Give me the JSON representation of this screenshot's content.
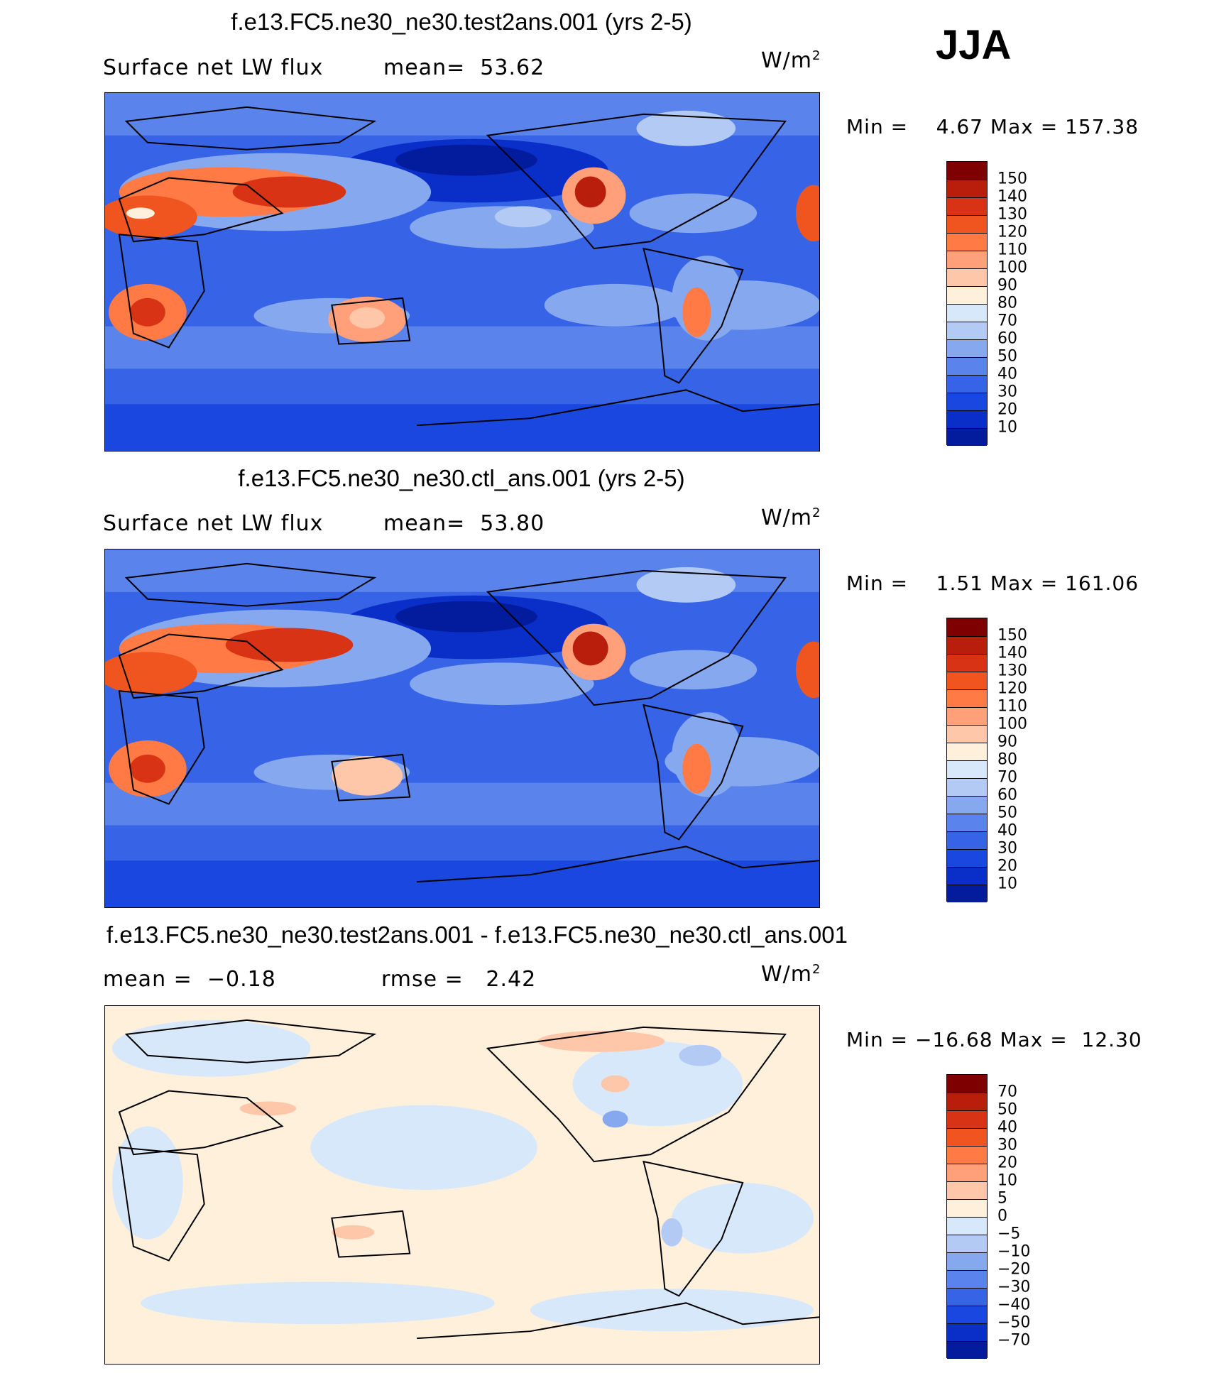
{
  "season": "JJA",
  "chart_data": [
    {
      "type": "heatmap",
      "title": "f.e13.FC5.ne30_ne30.test2ans.001 (yrs 2-5)",
      "variable": "Surface net LW flux",
      "stat_label": "mean=",
      "stat_value": "53.62",
      "units": "W/m",
      "units_sup": "2",
      "min_label": "Min =",
      "min": "4.67",
      "max_label": "Max =",
      "max": "157.38",
      "colorbar": {
        "levels": [
          "150",
          "140",
          "130",
          "120",
          "110",
          "100",
          "90",
          "80",
          "70",
          "60",
          "50",
          "40",
          "30",
          "20",
          "10"
        ],
        "colors": [
          "#7f0000",
          "#b81e0b",
          "#d83314",
          "#f0541f",
          "#ff7a44",
          "#ffa07a",
          "#ffc7a9",
          "#fff0dc",
          "#d8e8fb",
          "#b3cbf4",
          "#86a8ef",
          "#5a84eb",
          "#3764e7",
          "#1a47df",
          "#0a2fc9",
          "#031c9e"
        ]
      }
    },
    {
      "type": "heatmap",
      "title": "f.e13.FC5.ne30_ne30.ctl_ans.001 (yrs 2-5)",
      "variable": "Surface net LW flux",
      "stat_label": "mean=",
      "stat_value": "53.80",
      "units": "W/m",
      "units_sup": "2",
      "min_label": "Min =",
      "min": "1.51",
      "max_label": "Max =",
      "max": "161.06",
      "colorbar": {
        "levels": [
          "150",
          "140",
          "130",
          "120",
          "110",
          "100",
          "90",
          "80",
          "70",
          "60",
          "50",
          "40",
          "30",
          "20",
          "10"
        ],
        "colors": [
          "#7f0000",
          "#b81e0b",
          "#d83314",
          "#f0541f",
          "#ff7a44",
          "#ffa07a",
          "#ffc7a9",
          "#fff0dc",
          "#d8e8fb",
          "#b3cbf4",
          "#86a8ef",
          "#5a84eb",
          "#3764e7",
          "#1a47df",
          "#0a2fc9",
          "#031c9e"
        ]
      }
    },
    {
      "type": "heatmap",
      "title": "f.e13.FC5.ne30_ne30.test2ans.001 - f.e13.FC5.ne30_ne30.ctl_ans.001",
      "stat1_label": "mean =",
      "stat1_value": "−0.18",
      "stat2_label": "rmse =",
      "stat2_value": "2.42",
      "units": "W/m",
      "units_sup": "2",
      "min_label": "Min =",
      "min": "−16.68",
      "max_label": "Max =",
      "max": "12.30",
      "colorbar": {
        "levels": [
          "70",
          "50",
          "40",
          "30",
          "20",
          "10",
          "5",
          "0",
          "−5",
          "−10",
          "−20",
          "−30",
          "−40",
          "−50",
          "−70"
        ],
        "colors": [
          "#7f0000",
          "#b81e0b",
          "#d83314",
          "#f0541f",
          "#ff7a44",
          "#ffa07a",
          "#ffc7a9",
          "#fff0dc",
          "#d8e8fb",
          "#b3cbf4",
          "#86a8ef",
          "#5a84eb",
          "#3764e7",
          "#1a47df",
          "#0a2fc9",
          "#031c9e"
        ]
      }
    }
  ]
}
